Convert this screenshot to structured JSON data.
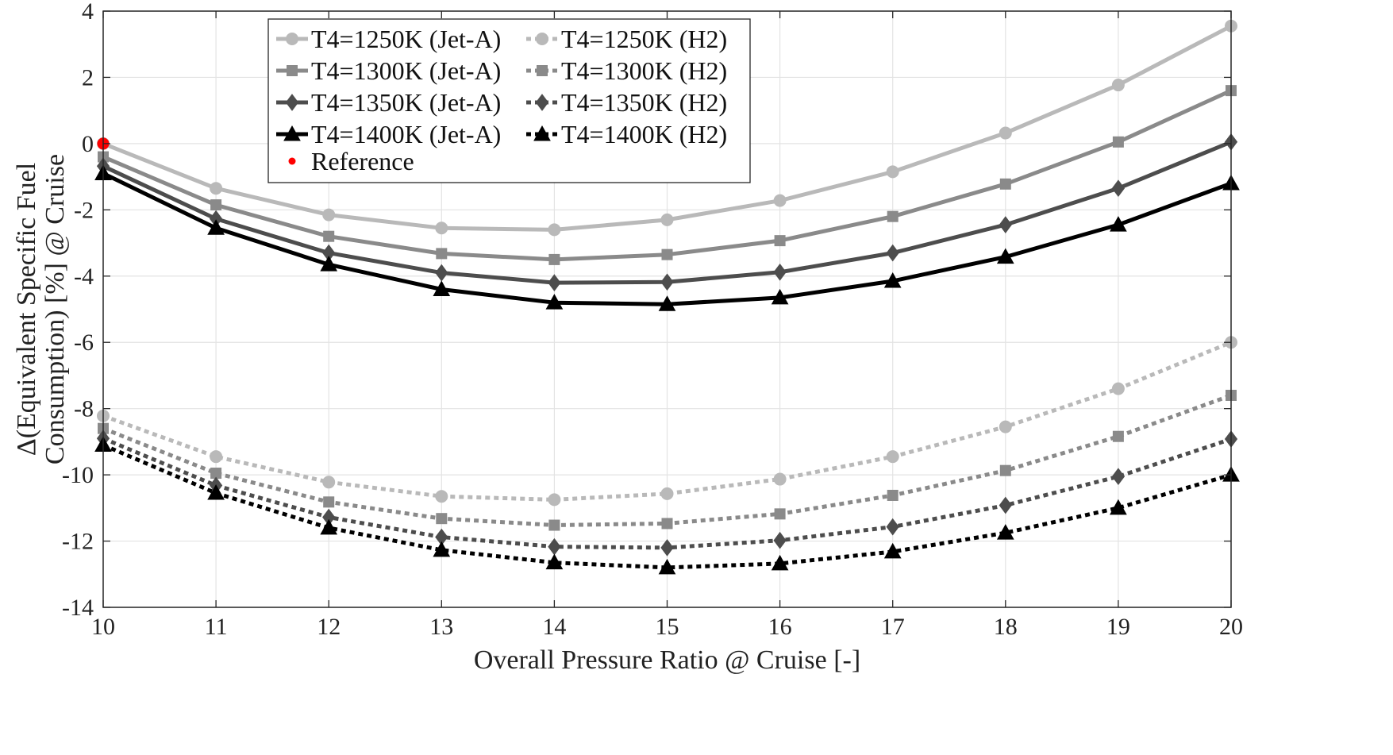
{
  "chart_data": {
    "type": "line",
    "title": "",
    "xlabel": "Overall Pressure Ratio @ Cruise [-]",
    "ylabel_line1": "Δ(Equivalent Specific Fuel",
    "ylabel_line2": "Consumption) [%] @ Cruise",
    "xlim": [
      10,
      20
    ],
    "ylim": [
      -14,
      4
    ],
    "xticks": [
      10,
      11,
      12,
      13,
      14,
      15,
      16,
      17,
      18,
      19,
      20
    ],
    "yticks": [
      4,
      2,
      0,
      -2,
      -4,
      -6,
      -8,
      -10,
      -12,
      -14
    ],
    "xtick_labels": [
      "10",
      "11",
      "12",
      "13",
      "14",
      "15",
      "16",
      "17",
      "18",
      "19",
      "20"
    ],
    "ytick_labels": [
      "4",
      "2",
      "0",
      "-2",
      "-4",
      "-6",
      "-8",
      "-10",
      "-12",
      "-14"
    ],
    "grid": true,
    "legend_position": "top-left",
    "x": [
      10,
      11,
      12,
      13,
      14,
      15,
      16,
      17,
      18,
      19,
      20
    ],
    "series": [
      {
        "name": "T4=1250K (Jet-A)",
        "color": "#b9b9b9",
        "line": "solid",
        "marker": "circle",
        "values": [
          0.0,
          -1.35,
          -2.15,
          -2.55,
          -2.6,
          -2.3,
          -1.72,
          -0.85,
          0.32,
          1.77,
          3.55
        ]
      },
      {
        "name": "T4=1300K (Jet-A)",
        "color": "#8a8a8a",
        "line": "solid",
        "marker": "square",
        "values": [
          -0.4,
          -1.85,
          -2.8,
          -3.32,
          -3.5,
          -3.35,
          -2.93,
          -2.2,
          -1.22,
          0.05,
          1.6
        ]
      },
      {
        "name": "T4=1350K (Jet-A)",
        "color": "#4d4d4d",
        "line": "solid",
        "marker": "diamond",
        "values": [
          -0.68,
          -2.27,
          -3.3,
          -3.9,
          -4.2,
          -4.18,
          -3.88,
          -3.3,
          -2.45,
          -1.35,
          0.05
        ]
      },
      {
        "name": "T4=1400K (Jet-A)",
        "color": "#000000",
        "line": "solid",
        "marker": "triangle",
        "values": [
          -0.9,
          -2.55,
          -3.65,
          -4.4,
          -4.8,
          -4.85,
          -4.65,
          -4.15,
          -3.42,
          -2.45,
          -1.2
        ]
      },
      {
        "name": "T4=1250K (H2)",
        "color": "#b9b9b9",
        "line": "dotted",
        "marker": "circle",
        "values": [
          -8.22,
          -9.45,
          -10.22,
          -10.65,
          -10.75,
          -10.57,
          -10.13,
          -9.45,
          -8.55,
          -7.4,
          -6.0
        ]
      },
      {
        "name": "T4=1300K (H2)",
        "color": "#8a8a8a",
        "line": "dotted",
        "marker": "square",
        "values": [
          -8.6,
          -9.95,
          -10.82,
          -11.32,
          -11.52,
          -11.47,
          -11.18,
          -10.62,
          -9.87,
          -8.84,
          -7.6
        ]
      },
      {
        "name": "T4=1350K (H2)",
        "color": "#4d4d4d",
        "line": "dotted",
        "marker": "diamond",
        "values": [
          -8.9,
          -10.32,
          -11.28,
          -11.88,
          -12.17,
          -12.2,
          -11.98,
          -11.57,
          -10.92,
          -10.05,
          -8.92
        ]
      },
      {
        "name": "T4=1400K (H2)",
        "color": "#000000",
        "line": "dotted",
        "marker": "triangle",
        "values": [
          -9.1,
          -10.55,
          -11.6,
          -12.27,
          -12.65,
          -12.8,
          -12.68,
          -12.32,
          -11.75,
          -11.0,
          -10.0
        ]
      }
    ],
    "reference": {
      "name": "Reference",
      "x": 10,
      "y": 0,
      "color": "#ff0000"
    },
    "legend_order": [
      0,
      4,
      1,
      5,
      2,
      6,
      3,
      7
    ]
  }
}
